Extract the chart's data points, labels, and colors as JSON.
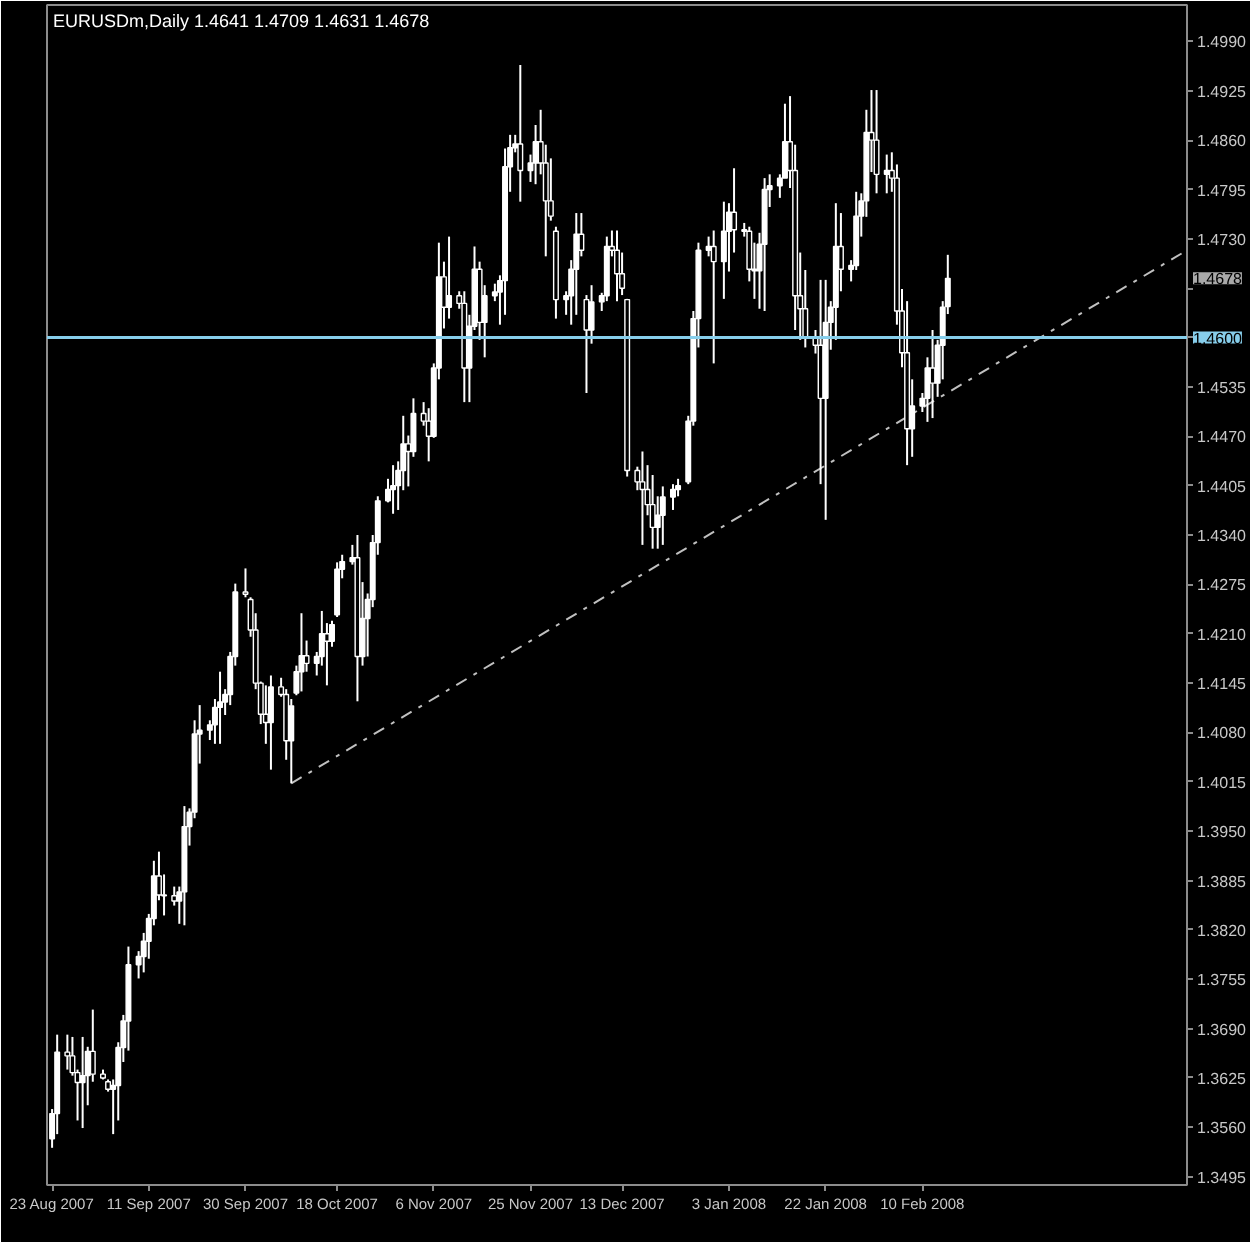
{
  "chart_data": {
    "type": "candlestick",
    "title": "EURUSDm,Daily 1.4641 1.4709 1.4631 1.4678",
    "color": "#ffffff",
    "x": [
      "2007-08-23",
      "2007-08-24",
      "2007-08-26",
      "2007-08-27",
      "2007-08-28",
      "2007-08-29",
      "2007-08-30",
      "2007-08-31",
      "2007-09-02",
      "2007-09-03",
      "2007-09-04",
      "2007-09-05",
      "2007-09-06",
      "2007-09-07",
      "2007-09-09",
      "2007-09-10",
      "2007-09-11",
      "2007-09-12",
      "2007-09-13",
      "2007-09-14",
      "2007-09-16",
      "2007-09-17",
      "2007-09-18",
      "2007-09-19",
      "2007-09-20",
      "2007-09-21",
      "2007-09-23",
      "2007-09-24",
      "2007-09-25",
      "2007-09-26",
      "2007-09-27",
      "2007-09-28",
      "2007-09-30",
      "2007-10-01",
      "2007-10-02",
      "2007-10-03",
      "2007-10-04",
      "2007-10-05",
      "2007-10-07",
      "2007-10-08",
      "2007-10-09",
      "2007-10-10",
      "2007-10-11",
      "2007-10-12",
      "2007-10-14",
      "2007-10-15",
      "2007-10-16",
      "2007-10-17",
      "2007-10-18",
      "2007-10-19",
      "2007-10-21",
      "2007-10-22",
      "2007-10-23",
      "2007-10-24",
      "2007-10-25",
      "2007-10-26",
      "2007-10-28",
      "2007-10-29",
      "2007-10-30",
      "2007-10-31",
      "2007-11-01",
      "2007-11-02",
      "2007-11-04",
      "2007-11-05",
      "2007-11-06",
      "2007-11-07",
      "2007-11-08",
      "2007-11-09",
      "2007-11-11",
      "2007-11-12",
      "2007-11-13",
      "2007-11-14",
      "2007-11-15",
      "2007-11-16",
      "2007-11-18",
      "2007-11-19",
      "2007-11-20",
      "2007-11-21",
      "2007-11-22",
      "2007-11-23",
      "2007-11-25",
      "2007-11-26",
      "2007-11-27",
      "2007-11-28",
      "2007-11-29",
      "2007-11-30",
      "2007-12-02",
      "2007-12-03",
      "2007-12-04",
      "2007-12-05",
      "2007-12-06",
      "2007-12-07",
      "2007-12-09",
      "2007-12-10",
      "2007-12-11",
      "2007-12-12",
      "2007-12-13",
      "2007-12-14",
      "2007-12-16",
      "2007-12-17",
      "2007-12-18",
      "2007-12-19",
      "2007-12-20",
      "2007-12-21",
      "2007-12-23",
      "2007-12-24",
      "2007-12-26",
      "2007-12-27",
      "2007-12-28",
      "2007-12-30",
      "2007-12-31",
      "2008-01-02",
      "2008-01-03",
      "2008-01-04",
      "2008-01-06",
      "2008-01-07",
      "2008-01-08",
      "2008-01-09",
      "2008-01-10",
      "2008-01-11",
      "2008-01-13",
      "2008-01-14",
      "2008-01-15",
      "2008-01-16",
      "2008-01-17",
      "2008-01-18",
      "2008-01-20",
      "2008-01-21",
      "2008-01-22",
      "2008-01-23",
      "2008-01-24",
      "2008-01-25",
      "2008-01-27",
      "2008-01-28",
      "2008-01-29",
      "2008-01-30",
      "2008-01-31",
      "2008-02-01",
      "2008-02-03",
      "2008-02-04",
      "2008-02-05",
      "2008-02-06",
      "2008-02-07",
      "2008-02-08",
      "2008-02-10",
      "2008-02-11",
      "2008-02-12",
      "2008-02-13",
      "2008-02-14",
      "2008-02-15"
    ],
    "ohlc": [
      [
        1.3545,
        1.3584,
        1.3533,
        1.3578
      ],
      [
        1.3578,
        1.3682,
        1.3551,
        1.3659
      ],
      [
        1.3659,
        1.3682,
        1.3636,
        1.3654
      ],
      [
        1.3654,
        1.3679,
        1.3628,
        1.3632
      ],
      [
        1.3632,
        1.3636,
        1.3569,
        1.3619
      ],
      [
        1.3619,
        1.3679,
        1.3559,
        1.3628
      ],
      [
        1.3628,
        1.3666,
        1.3589,
        1.366
      ],
      [
        1.366,
        1.3715,
        1.362,
        1.363
      ],
      [
        1.363,
        1.3636,
        1.3623,
        1.3625
      ],
      [
        1.362,
        1.3623,
        1.3607,
        1.361
      ],
      [
        1.361,
        1.3623,
        1.3551,
        1.3615
      ],
      [
        1.3615,
        1.3672,
        1.3569,
        1.3665
      ],
      [
        1.3665,
        1.3708,
        1.3646,
        1.37
      ],
      [
        1.37,
        1.3798,
        1.3661,
        1.3774
      ],
      [
        1.3774,
        1.3792,
        1.3756,
        1.3785
      ],
      [
        1.3785,
        1.3816,
        1.3764,
        1.3805
      ],
      [
        1.3805,
        1.3841,
        1.3782,
        1.3835
      ],
      [
        1.3835,
        1.3911,
        1.3826,
        1.3891
      ],
      [
        1.3891,
        1.3923,
        1.3859,
        1.3866
      ],
      [
        1.3866,
        1.3893,
        1.3839,
        1.3865
      ],
      [
        1.3865,
        1.3877,
        1.3852,
        1.3858
      ],
      [
        1.3858,
        1.3877,
        1.3828,
        1.387
      ],
      [
        1.387,
        1.3983,
        1.3826,
        1.3956
      ],
      [
        1.3956,
        1.398,
        1.3931,
        1.3975
      ],
      [
        1.3975,
        1.4096,
        1.3967,
        1.4078
      ],
      [
        1.4078,
        1.4116,
        1.4039,
        1.4083
      ],
      [
        1.4083,
        1.4096,
        1.407,
        1.409
      ],
      [
        1.409,
        1.4124,
        1.4065,
        1.4113
      ],
      [
        1.4113,
        1.416,
        1.4065,
        1.412
      ],
      [
        1.412,
        1.4137,
        1.4103,
        1.413
      ],
      [
        1.413,
        1.4186,
        1.4116,
        1.418
      ],
      [
        1.418,
        1.4276,
        1.4168,
        1.4265
      ],
      [
        1.4265,
        1.4296,
        1.4258,
        1.4262
      ],
      [
        1.4255,
        1.4258,
        1.4206,
        1.4215
      ],
      [
        1.4215,
        1.4237,
        1.4137,
        1.4145
      ],
      [
        1.4145,
        1.4147,
        1.4091,
        1.4104
      ],
      [
        1.4104,
        1.4142,
        1.4065,
        1.4093
      ],
      [
        1.4093,
        1.4155,
        1.4031,
        1.414
      ],
      [
        1.414,
        1.4152,
        1.4127,
        1.413
      ],
      [
        1.413,
        1.4137,
        1.4044,
        1.4069
      ],
      [
        1.4069,
        1.4124,
        1.4013,
        1.4115
      ],
      [
        1.4132,
        1.4168,
        1.4129,
        1.416
      ],
      [
        1.416,
        1.4237,
        1.4134,
        1.4181
      ],
      [
        1.4181,
        1.4201,
        1.416,
        1.4171
      ],
      [
        1.4171,
        1.4186,
        1.4155,
        1.418
      ],
      [
        1.418,
        1.424,
        1.4168,
        1.421
      ],
      [
        1.421,
        1.4224,
        1.4142,
        1.42
      ],
      [
        1.42,
        1.4227,
        1.4193,
        1.4222
      ],
      [
        1.4235,
        1.4304,
        1.4232,
        1.4295
      ],
      [
        1.4295,
        1.4314,
        1.4283,
        1.4305
      ],
      [
        1.4305,
        1.4327,
        1.4301,
        1.431
      ],
      [
        1.431,
        1.434,
        1.4121,
        1.418
      ],
      [
        1.418,
        1.4278,
        1.4168,
        1.423
      ],
      [
        1.423,
        1.4263,
        1.418,
        1.4255
      ],
      [
        1.4255,
        1.434,
        1.4245,
        1.433
      ],
      [
        1.433,
        1.4391,
        1.4314,
        1.4385
      ],
      [
        1.4385,
        1.4414,
        1.4383,
        1.44
      ],
      [
        1.44,
        1.4432,
        1.4368,
        1.4405
      ],
      [
        1.4405,
        1.4437,
        1.4373,
        1.4425
      ],
      [
        1.4425,
        1.4497,
        1.4399,
        1.446
      ],
      [
        1.446,
        1.4471,
        1.4404,
        1.445
      ],
      [
        1.445,
        1.452,
        1.4443,
        1.45
      ],
      [
        1.45,
        1.4515,
        1.4484,
        1.449
      ],
      [
        1.449,
        1.4507,
        1.4437,
        1.447
      ],
      [
        1.447,
        1.4566,
        1.4468,
        1.456
      ],
      [
        1.456,
        1.4725,
        1.4545,
        1.468
      ],
      [
        1.468,
        1.47,
        1.4612,
        1.464
      ],
      [
        1.464,
        1.4733,
        1.4625,
        1.4655
      ],
      [
        1.4655,
        1.4661,
        1.4638,
        1.4645
      ],
      [
        1.4645,
        1.4661,
        1.4515,
        1.456
      ],
      [
        1.456,
        1.463,
        1.4515,
        1.4615
      ],
      [
        1.4615,
        1.472,
        1.461,
        1.469
      ],
      [
        1.469,
        1.47,
        1.4597,
        1.462
      ],
      [
        1.462,
        1.4669,
        1.4574,
        1.4655
      ],
      [
        1.4655,
        1.4671,
        1.4648,
        1.466
      ],
      [
        1.466,
        1.4682,
        1.4617,
        1.4675
      ],
      [
        1.4675,
        1.4849,
        1.463,
        1.4825
      ],
      [
        1.4825,
        1.4867,
        1.4792,
        1.485
      ],
      [
        1.485,
        1.4867,
        1.4844,
        1.4855
      ],
      [
        1.4855,
        1.4959,
        1.4779,
        1.482
      ],
      [
        1.482,
        1.4841,
        1.4805,
        1.483
      ],
      [
        1.483,
        1.488,
        1.4802,
        1.4858
      ],
      [
        1.4858,
        1.49,
        1.4815,
        1.483
      ],
      [
        1.483,
        1.4854,
        1.4707,
        1.478
      ],
      [
        1.478,
        1.4836,
        1.4754,
        1.476
      ],
      [
        1.474,
        1.4746,
        1.4625,
        1.465
      ],
      [
        1.465,
        1.4661,
        1.463,
        1.4655
      ],
      [
        1.4655,
        1.4702,
        1.4617,
        1.469
      ],
      [
        1.469,
        1.4764,
        1.463,
        1.4736
      ],
      [
        1.4736,
        1.4764,
        1.4707,
        1.4715
      ],
      [
        1.465,
        1.4656,
        1.4527,
        1.461
      ],
      [
        1.461,
        1.4669,
        1.4592,
        1.4647
      ],
      [
        1.4647,
        1.4659,
        1.4635,
        1.4655
      ],
      [
        1.4655,
        1.4733,
        1.4648,
        1.472
      ],
      [
        1.472,
        1.4741,
        1.4707,
        1.4715
      ],
      [
        1.4715,
        1.4741,
        1.4648,
        1.4684
      ],
      [
        1.4684,
        1.4712,
        1.4656,
        1.4665
      ],
      [
        1.465,
        1.4651,
        1.4417,
        1.4425
      ],
      [
        1.4425,
        1.443,
        1.4399,
        1.441
      ],
      [
        1.441,
        1.445,
        1.4327,
        1.44
      ],
      [
        1.44,
        1.4432,
        1.4366,
        1.438
      ],
      [
        1.438,
        1.4419,
        1.4322,
        1.435
      ],
      [
        1.435,
        1.4391,
        1.4322,
        1.4366
      ],
      [
        1.4366,
        1.4404,
        1.4327,
        1.439
      ],
      [
        1.439,
        1.4407,
        1.4373,
        1.44
      ],
      [
        1.44,
        1.4414,
        1.4391,
        1.4405
      ],
      [
        1.441,
        1.4497,
        1.4407,
        1.449
      ],
      [
        1.449,
        1.4635,
        1.4484,
        1.4625
      ],
      [
        1.4625,
        1.4725,
        1.4587,
        1.4715
      ],
      [
        1.4715,
        1.4733,
        1.4707,
        1.472
      ],
      [
        1.472,
        1.4741,
        1.4566,
        1.47
      ],
      [
        1.47,
        1.4779,
        1.4651,
        1.474
      ],
      [
        1.474,
        1.4777,
        1.4687,
        1.4765
      ],
      [
        1.4765,
        1.4823,
        1.4712,
        1.4742
      ],
      [
        1.4742,
        1.4751,
        1.4733,
        1.474
      ],
      [
        1.474,
        1.4746,
        1.4674,
        1.469
      ],
      [
        1.469,
        1.4725,
        1.4651,
        1.4688
      ],
      [
        1.4688,
        1.4738,
        1.4638,
        1.4723
      ],
      [
        1.4723,
        1.481,
        1.4635,
        1.4795
      ],
      [
        1.4795,
        1.4815,
        1.4772,
        1.48
      ],
      [
        1.48,
        1.4815,
        1.4784,
        1.481
      ],
      [
        1.481,
        1.4908,
        1.481,
        1.4858
      ],
      [
        1.4858,
        1.4918,
        1.4797,
        1.482
      ],
      [
        1.482,
        1.4854,
        1.461,
        1.4655
      ],
      [
        1.4655,
        1.4712,
        1.4597,
        1.4638
      ],
      [
        1.4638,
        1.4689,
        1.4587,
        1.46
      ],
      [
        1.46,
        1.461,
        1.4579,
        1.459
      ],
      [
        1.459,
        1.4676,
        1.4407,
        1.452
      ],
      [
        1.452,
        1.4676,
        1.436,
        1.462
      ],
      [
        1.462,
        1.4648,
        1.4584,
        1.464
      ],
      [
        1.464,
        1.4777,
        1.4597,
        1.472
      ],
      [
        1.472,
        1.4764,
        1.4661,
        1.469
      ],
      [
        1.469,
        1.4702,
        1.4674,
        1.4695
      ],
      [
        1.4695,
        1.4792,
        1.4689,
        1.476
      ],
      [
        1.476,
        1.479,
        1.4733,
        1.478
      ],
      [
        1.478,
        1.49,
        1.4759,
        1.487
      ],
      [
        1.487,
        1.4926,
        1.4818,
        1.486
      ],
      [
        1.486,
        1.4926,
        1.479,
        1.4815
      ],
      [
        1.4815,
        1.4841,
        1.479,
        1.482
      ],
      [
        1.482,
        1.4844,
        1.4792,
        1.481
      ],
      [
        1.481,
        1.4828,
        1.4617,
        1.4635
      ],
      [
        1.4635,
        1.4664,
        1.4561,
        1.458
      ],
      [
        1.458,
        1.4648,
        1.4432,
        1.448
      ],
      [
        1.448,
        1.4545,
        1.4443,
        1.451
      ],
      [
        1.451,
        1.4527,
        1.4502,
        1.452
      ],
      [
        1.452,
        1.4574,
        1.4489,
        1.456
      ],
      [
        1.456,
        1.461,
        1.4494,
        1.454
      ],
      [
        1.454,
        1.4597,
        1.4522,
        1.459
      ],
      [
        1.459,
        1.4648,
        1.4545,
        1.464
      ],
      [
        1.4641,
        1.4709,
        1.4631,
        1.4678
      ]
    ],
    "series": [
      {
        "type": "line",
        "x": [
          "2007-10-09",
          "2008-04-02"
        ],
        "values": [
          1.4013,
          1.4715
        ],
        "color": "#c0c0c0",
        "line_style": "dashdot"
      }
    ],
    "xlim": [
      "2007-08-22",
      "2008-04-02"
    ],
    "xticks": [
      {
        "value": "2007-08-23",
        "label": "23 Aug 2007"
      },
      {
        "value": "2007-09-11",
        "label": "11 Sep 2007"
      },
      {
        "value": "2007-09-30",
        "label": "30 Sep 2007"
      },
      {
        "value": "2007-10-18",
        "label": "18 Oct 2007"
      },
      {
        "value": "2007-11-06",
        "label": "6 Nov 2007"
      },
      {
        "value": "2007-11-25",
        "label": "25 Nov 2007"
      },
      {
        "value": "2007-12-13",
        "label": "13 Dec 2007"
      },
      {
        "value": "2008-01-03",
        "label": "3 Jan 2008"
      },
      {
        "value": "2008-01-22",
        "label": "22 Jan 2008"
      },
      {
        "value": "2008-02-10",
        "label": "10 Feb 2008"
      }
    ],
    "ylim": [
      1.3484,
      1.5038
    ],
    "yticks": [
      {
        "value": 1.499,
        "label": "1.4990"
      },
      {
        "value": 1.4925,
        "label": "1.4925"
      },
      {
        "value": 1.486,
        "label": "1.4860"
      },
      {
        "value": 1.4795,
        "label": "1.4795"
      },
      {
        "value": 1.473,
        "label": "1.4730"
      },
      {
        "value": 1.4665,
        "label": null
      },
      {
        "value": 1.46,
        "label": null
      },
      {
        "value": 1.4535,
        "label": "1.4535"
      },
      {
        "value": 1.447,
        "label": "1.4470"
      },
      {
        "value": 1.4405,
        "label": "1.4405"
      },
      {
        "value": 1.434,
        "label": "1.4340"
      },
      {
        "value": 1.4275,
        "label": "1.4275"
      },
      {
        "value": 1.421,
        "label": "1.4210"
      },
      {
        "value": 1.4145,
        "label": "1.4145"
      },
      {
        "value": 1.408,
        "label": "1.4080"
      },
      {
        "value": 1.4015,
        "label": "1.4015"
      },
      {
        "value": 1.395,
        "label": "1.3950"
      },
      {
        "value": 1.3885,
        "label": "1.3885"
      },
      {
        "value": 1.382,
        "label": "1.3820"
      },
      {
        "value": 1.3755,
        "label": "1.3755"
      },
      {
        "value": 1.369,
        "label": "1.3690"
      },
      {
        "value": 1.3625,
        "label": "1.3625"
      },
      {
        "value": 1.356,
        "label": "1.3560"
      },
      {
        "value": 1.3495,
        "label": "1.3495"
      }
    ],
    "ref_lines": [
      {
        "axis": "y",
        "value": 1.46,
        "label": "1.4600",
        "color": "#87ceeb"
      }
    ],
    "annotations": [
      "1.4678"
    ]
  }
}
